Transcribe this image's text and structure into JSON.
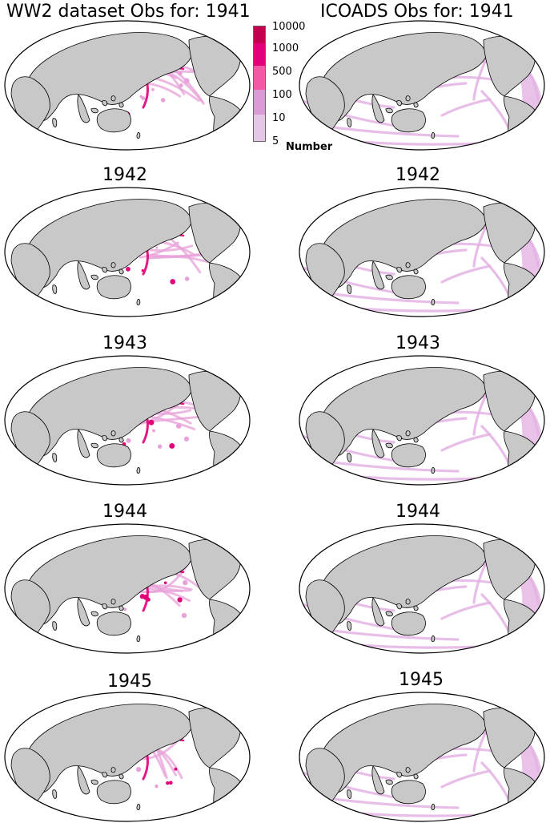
{
  "titles": {
    "left_top": "WW2 dataset Obs for: 1941",
    "right_top": "ICOADS Obs for: 1941",
    "years": [
      "1942",
      "1943",
      "1944",
      "1945"
    ]
  },
  "colorbar": {
    "label": "Number",
    "ticks": [
      "10000",
      "1000",
      "500",
      "100",
      "10",
      "5"
    ],
    "colors": [
      "#c2004f",
      "#e2007a",
      "#f25aa8",
      "#d99ad6",
      "#e6c6e6"
    ]
  },
  "colors": {
    "land": "#c8c8c8",
    "ocean": "#ffffff",
    "frame_border": "#000000",
    "ww2_light": "#e7a2d8",
    "ww2_dense": "#e20078",
    "icoads_track": "#e3b3e3"
  },
  "panels": [
    {
      "dataset": "WW2",
      "year": "1941"
    },
    {
      "dataset": "ICOADS",
      "year": "1941"
    },
    {
      "dataset": "WW2",
      "year": "1942"
    },
    {
      "dataset": "ICOADS",
      "year": "1942"
    },
    {
      "dataset": "WW2",
      "year": "1943"
    },
    {
      "dataset": "ICOADS",
      "year": "1943"
    },
    {
      "dataset": "WW2",
      "year": "1944"
    },
    {
      "dataset": "ICOADS",
      "year": "1944"
    },
    {
      "dataset": "WW2",
      "year": "1945"
    },
    {
      "dataset": "ICOADS",
      "year": "1945"
    }
  ]
}
